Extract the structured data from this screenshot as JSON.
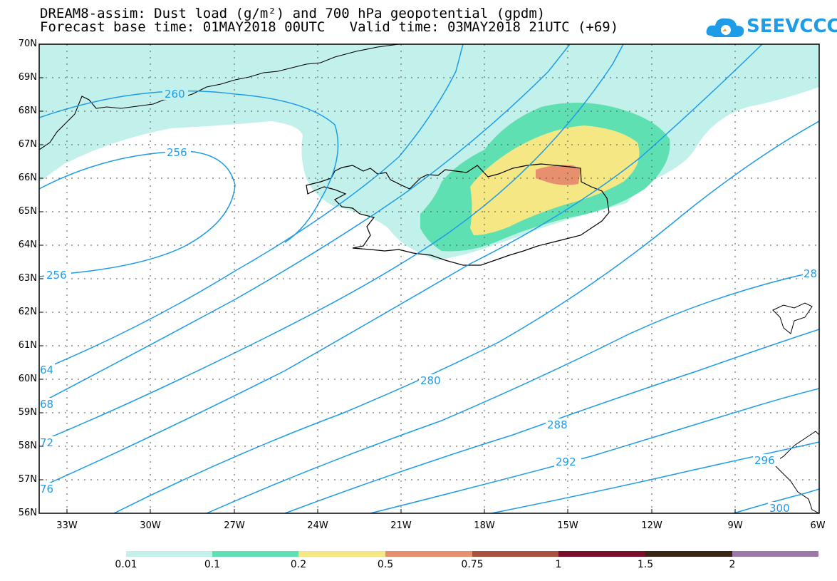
{
  "header": {
    "title_line1": "DREAM8-assim: Dust load (g/m²) and 700 hPa geopotential (gpdm)",
    "title_line2": "Forecast base time: 01MAY2018 00UTC   Valid time: 03MAY2018 21UTC (+69)"
  },
  "logo": {
    "text": "SEEVCCC",
    "icon": "cloud-icon"
  },
  "map": {
    "lat_labels": [
      "70N",
      "69N",
      "68N",
      "67N",
      "66N",
      "65N",
      "64N",
      "63N",
      "62N",
      "61N",
      "60N",
      "59N",
      "58N",
      "57N",
      "56N"
    ],
    "lon_labels": [
      "33W",
      "30W",
      "27W",
      "24W",
      "21W",
      "18W",
      "15W",
      "12W",
      "9W",
      "6W"
    ],
    "contour_labels": {
      "c260": "260",
      "c256a": "256",
      "c256b": "256",
      "c264": "64",
      "c268": "68",
      "c272": "72",
      "c276": "76",
      "c280": "280",
      "c284": "28",
      "c288": "288",
      "c292": "292",
      "c296": "296",
      "c300": "300"
    },
    "colors": {
      "contour": "#1e9ce8",
      "dust_001": "#c2f0ea",
      "dust_01": "#5fe0b2",
      "dust_02": "#f4e784",
      "dust_05": "#e8906e",
      "coast": "#000000"
    }
  },
  "colorbar": {
    "labels": [
      "0.01",
      "0.1",
      "0.2",
      "0.5",
      "0.75",
      "1",
      "1.5",
      "2"
    ],
    "colors": [
      "#c2f0ea",
      "#5fe0b2",
      "#f4e784",
      "#e8906e",
      "#a9533e",
      "#7a0f2c",
      "#3a2614",
      "#9b78a8"
    ]
  }
}
